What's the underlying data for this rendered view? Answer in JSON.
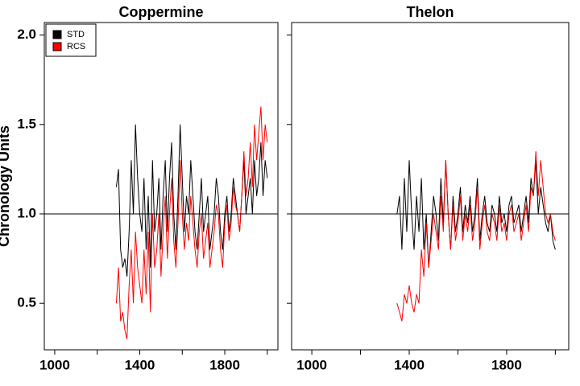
{
  "chart_data": [
    {
      "type": "line",
      "title": "Coppermine",
      "y_label": "Chronology Units",
      "xlim": [
        951,
        2050
      ],
      "ylim": [
        0.24,
        2.07
      ],
      "xticks": [
        1000,
        1400,
        1800
      ],
      "xminor_ticks": [
        1200,
        1600,
        2000
      ],
      "yticks": [
        0.5,
        {
          "value": 1,
          "label": "1.0"
        },
        1.5,
        {
          "value": 2,
          "label": "2.0"
        }
      ],
      "hline": 1,
      "legend": "top-left",
      "x": [
        1290,
        1300,
        1310,
        1320,
        1330,
        1340,
        1350,
        1360,
        1370,
        1380,
        1390,
        1400,
        1410,
        1420,
        1430,
        1440,
        1450,
        1460,
        1470,
        1480,
        1490,
        1500,
        1510,
        1520,
        1530,
        1540,
        1550,
        1560,
        1570,
        1580,
        1590,
        1600,
        1610,
        1620,
        1630,
        1640,
        1650,
        1660,
        1670,
        1680,
        1690,
        1700,
        1710,
        1720,
        1730,
        1740,
        1750,
        1760,
        1770,
        1780,
        1790,
        1800,
        1810,
        1820,
        1830,
        1840,
        1850,
        1860,
        1870,
        1880,
        1890,
        1900,
        1910,
        1920,
        1930,
        1940,
        1950,
        1960,
        1970,
        1980,
        1990,
        2000
      ],
      "series": [
        {
          "name": "STD",
          "color": "#000000",
          "values": [
            1.15,
            1.25,
            0.8,
            0.7,
            0.75,
            0.65,
            0.9,
            1.3,
            1.0,
            1.5,
            1.2,
            1.0,
            0.9,
            1.2,
            0.8,
            1.1,
            0.7,
            1.3,
            0.9,
            1.0,
            1.2,
            0.8,
            1.1,
            1.3,
            0.9,
            1.2,
            1.4,
            1.0,
            0.8,
            1.1,
            1.5,
            1.2,
            0.9,
            1.1,
            1.0,
            1.3,
            1.1,
            0.9,
            0.8,
            1.0,
            1.2,
            0.9,
            1.0,
            1.1,
            0.8,
            0.9,
            1.0,
            1.2,
            1.1,
            0.9,
            0.8,
            1.0,
            1.1,
            0.9,
            1.0,
            1.2,
            1.1,
            1.0,
            0.9,
            1.1,
            1.3,
            1.0,
            1.1,
            1.2,
            1.0,
            1.3,
            1.1,
            1.2,
            1.4,
            1.1,
            1.3,
            1.2
          ]
        },
        {
          "name": "RCS",
          "color": "#ff0000",
          "values": [
            0.5,
            0.7,
            0.4,
            0.45,
            0.35,
            0.3,
            0.6,
            0.8,
            0.5,
            0.9,
            0.7,
            0.6,
            0.5,
            0.8,
            0.55,
            0.9,
            0.45,
            1.0,
            0.7,
            0.8,
            1.0,
            0.65,
            0.9,
            1.1,
            0.75,
            1.0,
            1.2,
            0.85,
            0.7,
            0.95,
            1.3,
            1.0,
            0.8,
            0.95,
            0.85,
            1.1,
            0.95,
            0.8,
            0.7,
            0.9,
            1.0,
            0.75,
            0.85,
            0.95,
            0.7,
            0.8,
            0.9,
            1.05,
            1.0,
            0.8,
            0.7,
            0.95,
            1.05,
            0.85,
            0.95,
            1.15,
            1.05,
            1.0,
            0.9,
            1.1,
            1.35,
            1.1,
            1.2,
            1.4,
            1.15,
            1.5,
            1.3,
            1.45,
            1.6,
            1.3,
            1.5,
            1.4
          ]
        }
      ]
    },
    {
      "type": "line",
      "title": "Thelon",
      "xlim": [
        917,
        2055
      ],
      "ylim": [
        0.24,
        2.07
      ],
      "xticks": [
        1000,
        1400,
        1800
      ],
      "xminor_ticks": [
        1200,
        1600,
        2000
      ],
      "hline": 1,
      "x": [
        1350,
        1360,
        1370,
        1380,
        1390,
        1400,
        1410,
        1420,
        1430,
        1440,
        1450,
        1460,
        1470,
        1480,
        1490,
        1500,
        1510,
        1520,
        1530,
        1540,
        1550,
        1560,
        1570,
        1580,
        1590,
        1600,
        1610,
        1620,
        1630,
        1640,
        1650,
        1660,
        1670,
        1680,
        1690,
        1700,
        1710,
        1720,
        1730,
        1740,
        1750,
        1760,
        1770,
        1780,
        1790,
        1800,
        1810,
        1820,
        1830,
        1840,
        1850,
        1860,
        1870,
        1880,
        1890,
        1900,
        1910,
        1920,
        1930,
        1940,
        1950,
        1960,
        1970,
        1980,
        1990,
        2000
      ],
      "series": [
        {
          "name": "STD",
          "color": "#000000",
          "values": [
            1.0,
            1.1,
            0.8,
            1.2,
            0.9,
            1.3,
            1.0,
            0.8,
            1.1,
            0.9,
            1.2,
            0.8,
            1.0,
            0.7,
            0.9,
            1.1,
            1.0,
            0.85,
            1.2,
            0.95,
            1.3,
            1.0,
            0.8,
            1.1,
            0.9,
            1.0,
            1.15,
            0.9,
            1.05,
            0.95,
            1.1,
            0.9,
            1.0,
            1.2,
            0.85,
            1.0,
            1.1,
            0.95,
            0.9,
            1.05,
            1.0,
            0.9,
            1.1,
            0.95,
            1.0,
            0.9,
            1.05,
            1.1,
            0.95,
            1.0,
            1.05,
            0.9,
            1.0,
            1.1,
            0.95,
            1.2,
            1.1,
            1.3,
            1.0,
            1.15,
            1.05,
            0.95,
            0.9,
            1.0,
            0.85,
            0.8
          ]
        },
        {
          "name": "RCS",
          "color": "#ff0000",
          "values": [
            0.5,
            0.45,
            0.4,
            0.55,
            0.5,
            0.6,
            0.5,
            0.45,
            0.55,
            0.5,
            0.8,
            0.65,
            0.95,
            0.7,
            0.85,
            1.0,
            0.9,
            0.8,
            1.1,
            0.9,
            1.3,
            1.0,
            0.8,
            1.05,
            0.85,
            0.95,
            1.1,
            0.85,
            1.0,
            0.9,
            1.05,
            0.85,
            0.95,
            1.15,
            0.8,
            0.95,
            1.05,
            0.9,
            0.85,
            1.0,
            0.95,
            0.85,
            1.05,
            0.9,
            0.95,
            0.85,
            1.0,
            1.05,
            0.9,
            0.95,
            1.0,
            0.85,
            0.95,
            1.05,
            0.9,
            1.15,
            1.1,
            1.35,
            1.1,
            1.3,
            1.15,
            1.0,
            0.95,
            1.0,
            0.9,
            0.85
          ]
        }
      ]
    }
  ]
}
